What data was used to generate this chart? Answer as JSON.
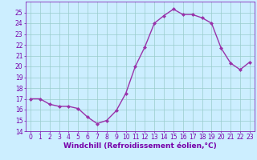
{
  "x": [
    0,
    1,
    2,
    3,
    4,
    5,
    6,
    7,
    8,
    9,
    10,
    11,
    12,
    13,
    14,
    15,
    16,
    17,
    18,
    19,
    20,
    21,
    22,
    23
  ],
  "y": [
    17.0,
    17.0,
    16.5,
    16.3,
    16.3,
    16.1,
    15.3,
    14.7,
    15.0,
    15.9,
    17.5,
    20.0,
    21.8,
    24.0,
    24.7,
    25.3,
    24.8,
    24.8,
    24.5,
    24.0,
    21.7,
    20.3,
    19.7,
    20.4
  ],
  "line_color": "#9933aa",
  "marker": "D",
  "marker_size": 2.0,
  "line_width": 1.0,
  "bg_color": "#cceeff",
  "grid_color": "#99cccc",
  "xlabel": "Windchill (Refroidissement éolien,°C)",
  "xlabel_color": "#7700aa",
  "xlabel_fontsize": 6.5,
  "tick_color": "#7700aa",
  "tick_fontsize": 5.5,
  "ylim": [
    14,
    26
  ],
  "xlim_min": -0.5,
  "xlim_max": 23.5,
  "yticks": [
    14,
    15,
    16,
    17,
    18,
    19,
    20,
    21,
    22,
    23,
    24,
    25
  ],
  "xticks": [
    0,
    1,
    2,
    3,
    4,
    5,
    6,
    7,
    8,
    9,
    10,
    11,
    12,
    13,
    14,
    15,
    16,
    17,
    18,
    19,
    20,
    21,
    22,
    23
  ]
}
